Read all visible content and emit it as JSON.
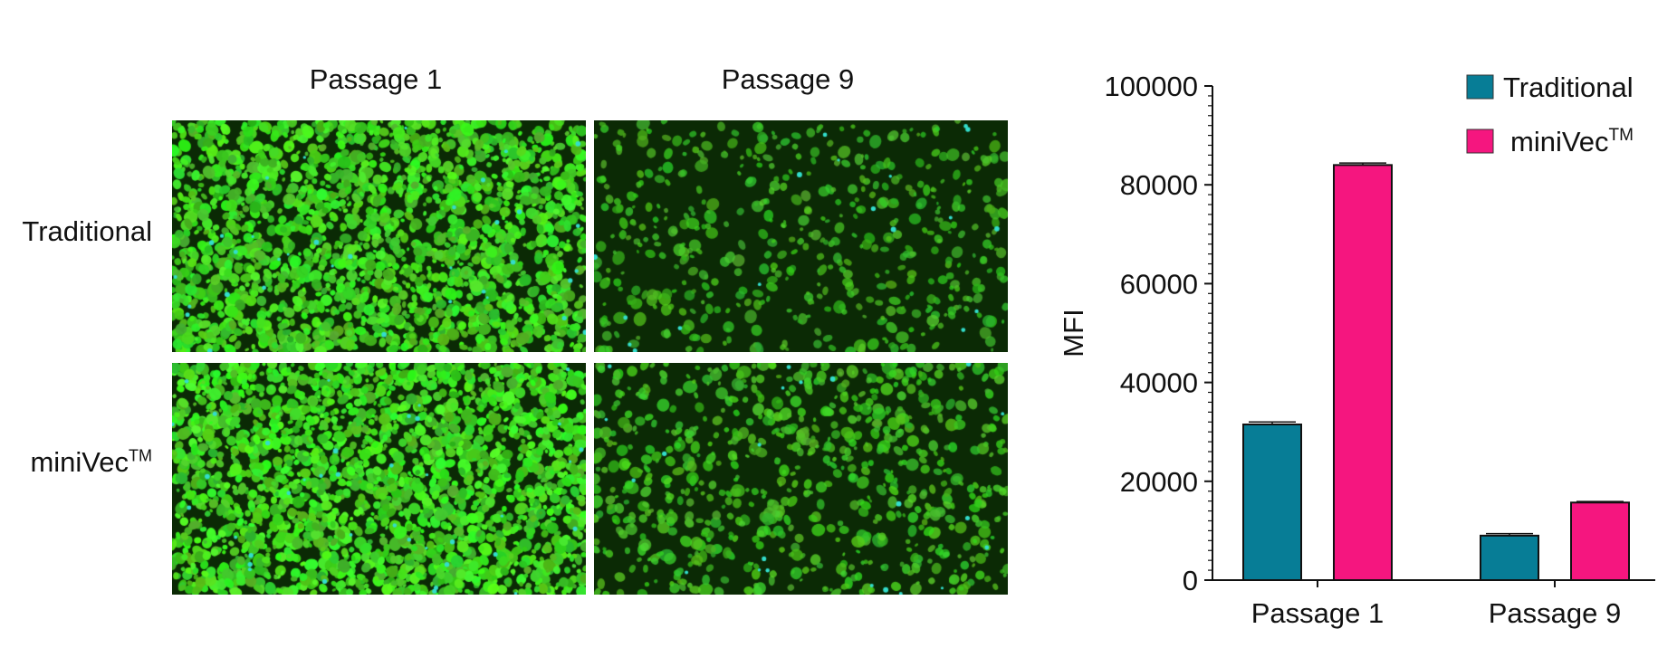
{
  "panel_labels": {
    "columns": [
      "Passage 1",
      "Passage 9"
    ],
    "rows": [
      "Traditional",
      "miniVec"
    ],
    "trademark": "TM"
  },
  "micrographs": {
    "description_colors": {
      "background": "#0b2a05",
      "cell": "#3fd42a",
      "bright": "#7cff3a",
      "nuclei": "#33ddcc"
    },
    "density": [
      [
        0.9,
        0.45
      ],
      [
        0.95,
        0.55
      ]
    ]
  },
  "chart_data": {
    "type": "bar",
    "categories": [
      "Passage 1",
      "Passage 9"
    ],
    "series": [
      {
        "name": "Traditional",
        "values": [
          31500,
          9000
        ],
        "errors": [
          500,
          400
        ],
        "color": "#077d96"
      },
      {
        "name": "miniVec™",
        "values": [
          84000,
          15700
        ],
        "errors": [
          400,
          200
        ],
        "color": "#f5167f"
      }
    ],
    "ylabel": "MFI",
    "xlabel": "",
    "ylim": [
      0,
      100000
    ],
    "yticks": [
      0,
      20000,
      40000,
      60000,
      80000,
      100000
    ],
    "legend": "top-right",
    "legend_labels": [
      "Traditional",
      "miniVec"
    ],
    "grid": false
  }
}
